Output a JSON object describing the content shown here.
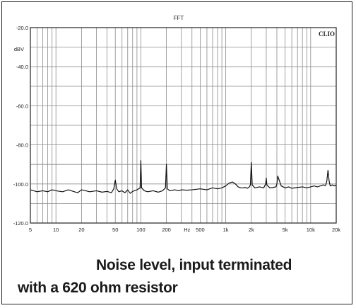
{
  "chart_data": {
    "type": "line",
    "title": "FFT",
    "ylabel": "dBV",
    "watermark": "CLIO",
    "xscale": "log",
    "xlim": [
      5,
      20000
    ],
    "ylim": [
      -120,
      -20
    ],
    "grid": true,
    "x_ticks": [
      {
        "value": 5,
        "label": "5"
      },
      {
        "value": 10,
        "label": "10"
      },
      {
        "value": 20,
        "label": "20"
      },
      {
        "value": 50,
        "label": "50"
      },
      {
        "value": 100,
        "label": "100"
      },
      {
        "value": 200,
        "label": "200"
      },
      {
        "value": 350,
        "label": "Hz"
      },
      {
        "value": 500,
        "label": "500"
      },
      {
        "value": 1000,
        "label": "1k"
      },
      {
        "value": 2000,
        "label": "2k"
      },
      {
        "value": 5000,
        "label": "5k"
      },
      {
        "value": 10000,
        "label": "10k"
      },
      {
        "value": 20000,
        "label": "20k"
      }
    ],
    "y_ticks": [
      {
        "value": -20,
        "label": "-20.0"
      },
      {
        "value": -40,
        "label": "-40.0"
      },
      {
        "value": -60,
        "label": "-60.0"
      },
      {
        "value": -80,
        "label": "-80.0"
      },
      {
        "value": -100,
        "label": "-100.0"
      },
      {
        "value": -120,
        "label": "-120.0"
      }
    ],
    "series": [
      {
        "color": "#111111",
        "x": [
          5,
          6,
          7,
          8,
          9,
          10,
          12,
          14,
          16,
          18,
          20,
          25,
          30,
          35,
          40,
          45,
          48,
          50,
          52,
          55,
          60,
          65,
          70,
          75,
          80,
          90,
          98,
          100,
          102,
          110,
          120,
          140,
          160,
          180,
          195,
          200,
          205,
          220,
          250,
          280,
          300,
          350,
          400,
          500,
          600,
          700,
          800,
          900,
          1000,
          1100,
          1200,
          1300,
          1400,
          1500,
          1600,
          1700,
          1800,
          1900,
          1950,
          2000,
          2050,
          2200,
          2500,
          2800,
          2950,
          3000,
          3050,
          3300,
          3600,
          3900,
          4000,
          4100,
          4500,
          5000,
          5500,
          6000,
          7000,
          8000,
          9000,
          10000,
          11000,
          12000,
          13000,
          14000,
          15000,
          15500,
          16000,
          16500,
          17000,
          18000,
          19000,
          20000
        ],
        "y": [
          -103,
          -104,
          -103.5,
          -104,
          -103,
          -103.5,
          -104,
          -103,
          -103.8,
          -104.5,
          -103,
          -104,
          -103.5,
          -104.2,
          -103.8,
          -104.5,
          -102.5,
          -98,
          -102.5,
          -104,
          -103.5,
          -104.5,
          -103,
          -104.8,
          -103.8,
          -103,
          -102,
          -88,
          -102,
          -103.5,
          -104,
          -103.5,
          -104.2,
          -103.5,
          -102,
          -90,
          -102.5,
          -103.5,
          -103,
          -103.5,
          -103,
          -103.2,
          -103,
          -102.5,
          -103,
          -102,
          -102.5,
          -102,
          -101,
          -99.5,
          -99,
          -100,
          -101.5,
          -102,
          -102,
          -101.8,
          -102.2,
          -101.5,
          -100.5,
          -89,
          -100.5,
          -102,
          -101.5,
          -102,
          -100,
          -97,
          -100.5,
          -102,
          -101.8,
          -101.5,
          -100,
          -96,
          -101,
          -102,
          -101.5,
          -102.2,
          -101.8,
          -101.5,
          -102,
          -101.5,
          -101,
          -101.5,
          -101,
          -100.5,
          -100.8,
          -98.5,
          -93,
          -98.5,
          -101,
          -100.5,
          -101,
          -100.5
        ]
      }
    ]
  },
  "caption": {
    "line1": "Noise level, input terminated",
    "line2": "with a 620 ohm resistor"
  }
}
